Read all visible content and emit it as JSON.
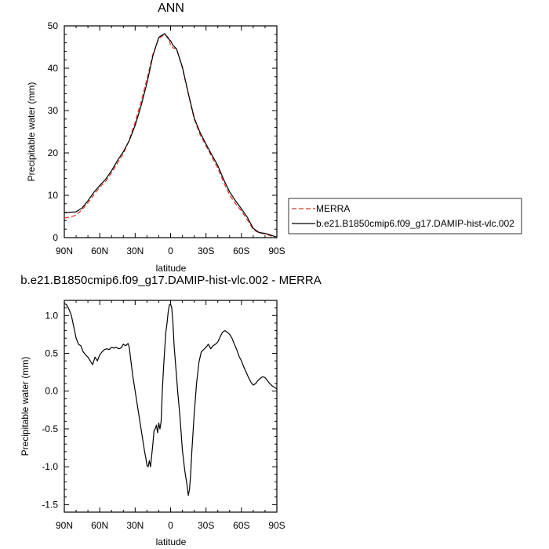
{
  "chart_data": [
    {
      "type": "line",
      "title": "ANN",
      "xlabel": "latitude",
      "ylabel": "Precipitable water (mm)",
      "xlim": [
        90,
        -90
      ],
      "ylim": [
        0,
        50
      ],
      "x_ticks": [
        90,
        60,
        30,
        0,
        -30,
        -60,
        -90
      ],
      "x_tick_labels": [
        "90N",
        "60N",
        "30N",
        "0",
        "30S",
        "60S",
        "90S"
      ],
      "y_ticks": [
        0,
        10,
        20,
        30,
        40,
        50
      ],
      "y_tick_labels": [
        "0",
        "10",
        "20",
        "30",
        "40",
        "50"
      ],
      "grid": false,
      "legend_position": "right",
      "series": [
        {
          "name": "MERRA",
          "color": "#e0301e",
          "style": "dashed",
          "x": [
            90,
            85,
            80,
            75,
            70,
            65,
            60,
            55,
            50,
            45,
            40,
            35,
            30,
            25,
            20,
            15,
            10,
            5,
            2,
            0,
            -2,
            -5,
            -10,
            -15,
            -20,
            -25,
            -30,
            -35,
            -40,
            -45,
            -50,
            -55,
            -60,
            -65,
            -70,
            -75,
            -80,
            -85,
            -90
          ],
          "y": [
            4.6,
            4.9,
            5.3,
            6.6,
            8.2,
            10.1,
            11.9,
            13.3,
            15.3,
            17.6,
            19.8,
            23.1,
            27.3,
            32.1,
            37.5,
            43.3,
            47.0,
            48.0,
            47.3,
            45.5,
            44.8,
            44.6,
            40.0,
            33.9,
            28.0,
            24.3,
            21.7,
            19.0,
            16.4,
            13.0,
            10.1,
            8.0,
            6.3,
            4.2,
            1.9,
            1.1,
            0.9,
            0.4,
            0.1
          ]
        },
        {
          "name": "b.e21.B1850cmip6.f09_g17.DAMIP-hist-vlc.002",
          "color": "#000000",
          "style": "solid",
          "x": [
            90,
            85,
            80,
            75,
            70,
            65,
            60,
            55,
            50,
            45,
            40,
            35,
            30,
            25,
            20,
            15,
            10,
            5,
            2,
            0,
            -2,
            -5,
            -10,
            -15,
            -20,
            -25,
            -30,
            -35,
            -40,
            -45,
            -50,
            -55,
            -60,
            -65,
            -70,
            -75,
            -80,
            -85,
            -90
          ],
          "y": [
            5.9,
            6.0,
            6.1,
            7.0,
            8.7,
            10.7,
            12.3,
            13.8,
            15.8,
            18.2,
            20.3,
            22.9,
            26.5,
            31.1,
            36.5,
            42.9,
            47.3,
            48.2,
            47.0,
            46.5,
            45.4,
            44.6,
            40.3,
            34.1,
            28.3,
            24.8,
            22.1,
            19.5,
            17.0,
            13.7,
            10.8,
            8.7,
            6.8,
            4.8,
            2.2,
            1.2,
            1.0,
            0.6,
            0.1
          ]
        }
      ]
    },
    {
      "type": "line",
      "title": "b.e21.B1850cmip6.f09_g17.DAMIP-hist-vlc.002 - MERRA",
      "xlabel": "latitude",
      "ylabel": "Precipitable water (mm)",
      "xlim": [
        90,
        -90
      ],
      "ylim": [
        -1.6,
        1.2
      ],
      "x_ticks": [
        90,
        60,
        30,
        0,
        -30,
        -60,
        -90
      ],
      "x_tick_labels": [
        "90N",
        "60N",
        "30N",
        "0",
        "30S",
        "60S",
        "90S"
      ],
      "y_ticks": [
        1.0,
        0.5,
        0.0,
        -0.5,
        -1.0,
        -1.5
      ],
      "y_tick_labels": [
        "1.0",
        "0.5",
        "0.0",
        "-0.5",
        "-1.0",
        "-1.5"
      ],
      "grid": false,
      "series": [
        {
          "color": "#000000",
          "style": "solid",
          "x": [
            90,
            88,
            86,
            84,
            82,
            80,
            78,
            76,
            74,
            72,
            70,
            68,
            66,
            64,
            62,
            60,
            58,
            56,
            54,
            52,
            50,
            48,
            46,
            44,
            42,
            40,
            38,
            36,
            35,
            34,
            32,
            30,
            28,
            26,
            24,
            22,
            21,
            20,
            19,
            18,
            17,
            16,
            15,
            14,
            13,
            12,
            11,
            10,
            9,
            8,
            7,
            6,
            5,
            4,
            3,
            2,
            1,
            0,
            -1,
            -2,
            -3,
            -4,
            -5,
            -6,
            -8,
            -10,
            -12,
            -14,
            -15,
            -16,
            -17,
            -18,
            -20,
            -22,
            -24,
            -26,
            -28,
            -30,
            -32,
            -34,
            -36,
            -38,
            -40,
            -42,
            -44,
            -46,
            -48,
            -50,
            -52,
            -54,
            -56,
            -58,
            -60,
            -62,
            -64,
            -66,
            -68,
            -70,
            -72,
            -74,
            -76,
            -78,
            -80,
            -82,
            -84,
            -86,
            -88,
            -90
          ],
          "y": [
            1.16,
            1.14,
            1.08,
            1.0,
            0.85,
            0.7,
            0.62,
            0.6,
            0.52,
            0.48,
            0.45,
            0.4,
            0.35,
            0.45,
            0.4,
            0.48,
            0.52,
            0.55,
            0.56,
            0.55,
            0.58,
            0.57,
            0.58,
            0.56,
            0.57,
            0.62,
            0.6,
            0.63,
            0.58,
            0.45,
            0.2,
            0.0,
            -0.2,
            -0.4,
            -0.6,
            -0.8,
            -0.88,
            -0.98,
            -1.0,
            -0.92,
            -1.0,
            -0.85,
            -0.7,
            -0.52,
            -0.5,
            -0.45,
            -0.55,
            -0.42,
            -0.5,
            -0.4,
            0.0,
            0.3,
            0.55,
            0.78,
            0.9,
            1.05,
            1.14,
            1.15,
            1.1,
            0.9,
            0.6,
            0.4,
            0.2,
            0.0,
            -0.35,
            -0.78,
            -1.05,
            -1.25,
            -1.38,
            -1.3,
            -1.1,
            -0.8,
            -0.3,
            0.1,
            0.38,
            0.52,
            0.55,
            0.58,
            0.62,
            0.56,
            0.6,
            0.62,
            0.65,
            0.72,
            0.78,
            0.8,
            0.78,
            0.75,
            0.7,
            0.62,
            0.55,
            0.46,
            0.4,
            0.32,
            0.25,
            0.18,
            0.12,
            0.08,
            0.1,
            0.14,
            0.17,
            0.19,
            0.18,
            0.14,
            0.1,
            0.07,
            0.05,
            0.03
          ]
        }
      ]
    }
  ]
}
